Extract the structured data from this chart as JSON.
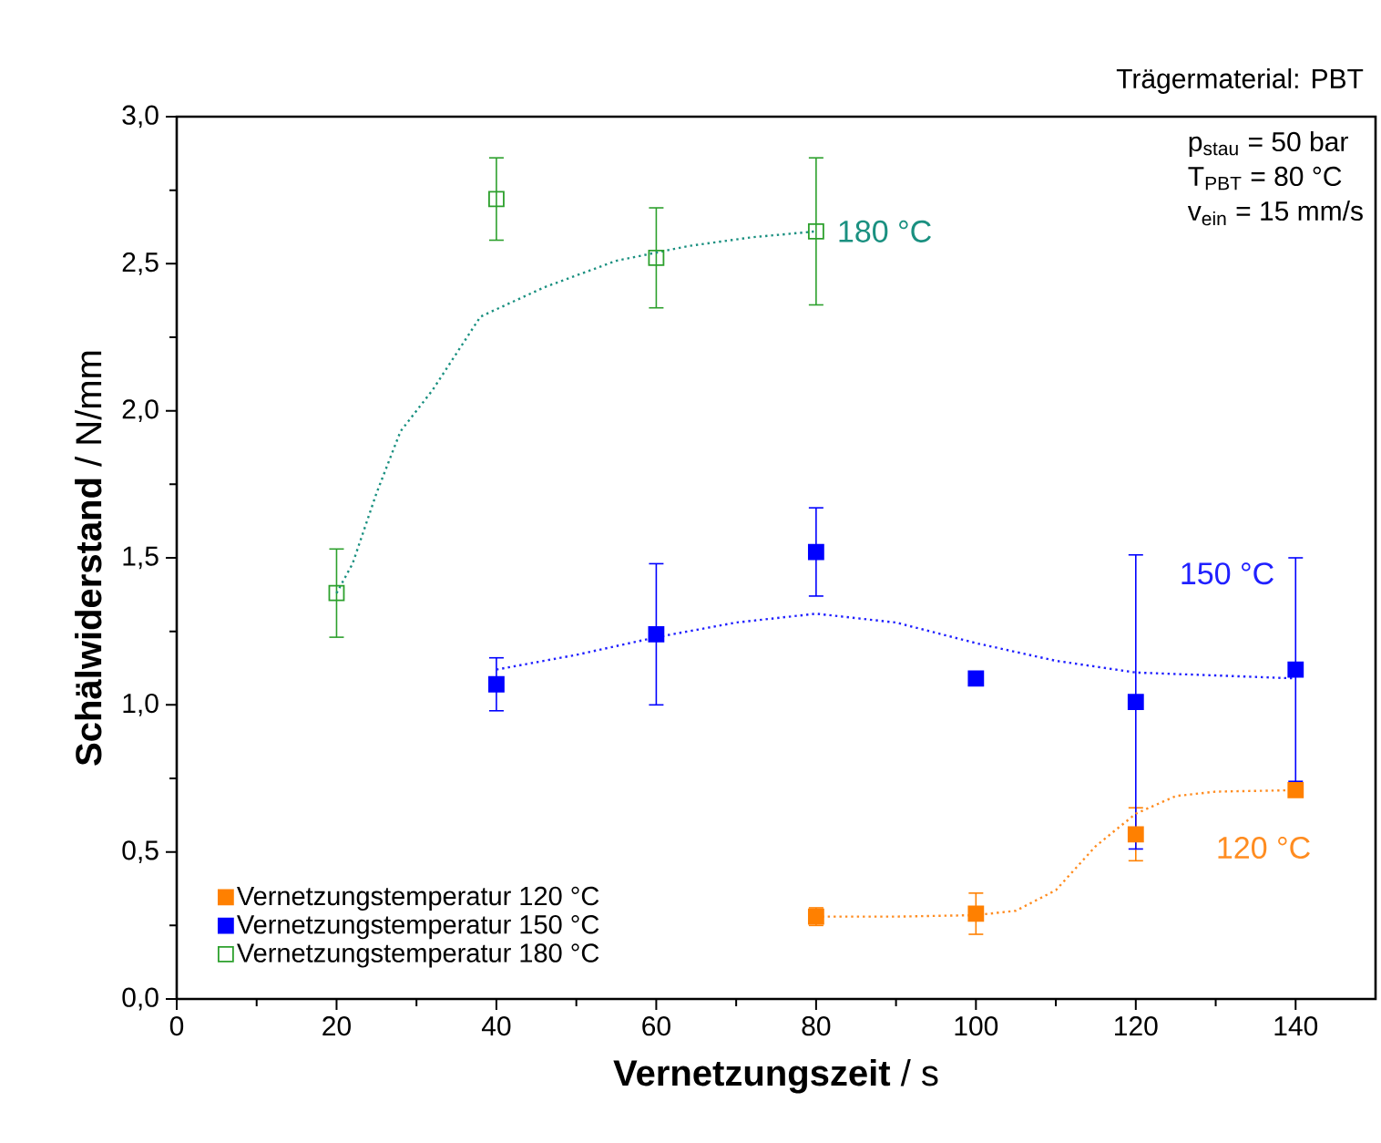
{
  "chart_data": {
    "type": "scatter",
    "title": "Trägermaterial: PBT",
    "xlabel": "**Vernetzungszeit** / s",
    "ylabel": "**Schälwiderstand** / N/mm",
    "xlim": [
      0,
      150
    ],
    "ylim": [
      0,
      3
    ],
    "xticks": [
      0,
      20,
      40,
      60,
      80,
      100,
      120,
      140
    ],
    "yticks": [
      {
        "value": 0,
        "label": "0,0"
      },
      {
        "value": 0.5,
        "label": "0,5"
      },
      {
        "value": 1,
        "label": "1,0"
      },
      {
        "value": 1.5,
        "label": "1,5"
      },
      {
        "value": 2,
        "label": "2,0"
      },
      {
        "value": 2.5,
        "label": "2,5"
      },
      {
        "value": 3,
        "label": "3,0"
      }
    ],
    "grid": false,
    "legend": "bottom left",
    "series": [
      {
        "name": "Vernetzungstemperatur 120 °C",
        "type": "scatter",
        "marker": "square",
        "color": "#ff8000",
        "x": [
          80,
          100,
          120,
          140
        ],
        "values": [
          0.28,
          0.29,
          0.56,
          0.71
        ],
        "errors": [
          0.03,
          0.07,
          0.09,
          null
        ]
      },
      {
        "name": "Vernetzungstemperatur 150 °C",
        "type": "scatter",
        "marker": "square",
        "color": "#0000ff",
        "x": [
          40,
          60,
          80,
          100,
          120,
          140
        ],
        "values": [
          1.07,
          1.24,
          1.52,
          1.09,
          1.01,
          1.12
        ],
        "errors": [
          0.09,
          0.24,
          0.15,
          null,
          0.5,
          0.38
        ]
      },
      {
        "name": "Vernetzungstemperatur 180 °C",
        "type": "scatter",
        "marker": "square_open",
        "color": "#2ca02c",
        "x": [
          20,
          40,
          60,
          80
        ],
        "values": [
          1.38,
          2.72,
          2.52,
          2.61
        ],
        "errors": [
          0.15,
          0.14,
          0.17,
          0.25
        ]
      },
      {
        "name": "120 °C",
        "type": "line",
        "marker": "none",
        "line_style": "dotted",
        "color": "#ff8c20",
        "x": [
          80,
          90,
          100,
          105,
          110,
          115,
          120,
          125,
          130,
          140
        ],
        "values": [
          0.28,
          0.28,
          0.285,
          0.3,
          0.37,
          0.52,
          0.63,
          0.69,
          0.705,
          0.71
        ]
      },
      {
        "name": "150 °C",
        "type": "line",
        "marker": "none",
        "line_style": "dotted",
        "color": "#2020ff",
        "x": [
          40,
          50,
          60,
          70,
          80,
          90,
          100,
          110,
          120,
          130,
          140
        ],
        "values": [
          1.12,
          1.17,
          1.23,
          1.28,
          1.31,
          1.28,
          1.21,
          1.15,
          1.11,
          1.1,
          1.09
        ]
      },
      {
        "name": "180 °C",
        "type": "line",
        "marker": "none",
        "line_style": "dotted",
        "color": "#1a9080",
        "x": [
          20,
          22,
          25,
          28,
          32,
          38,
          46,
          55,
          64,
          72,
          80
        ],
        "values": [
          1.38,
          1.48,
          1.72,
          1.93,
          2.07,
          2.32,
          2.42,
          2.51,
          2.56,
          2.59,
          2.61
        ]
      }
    ],
    "annotations": [
      "p$_{stau}$ = 50 bar",
      "T$_{PBT}$ = 80 °C",
      "v$_{ein}$ = 15 mm/s"
    ]
  }
}
